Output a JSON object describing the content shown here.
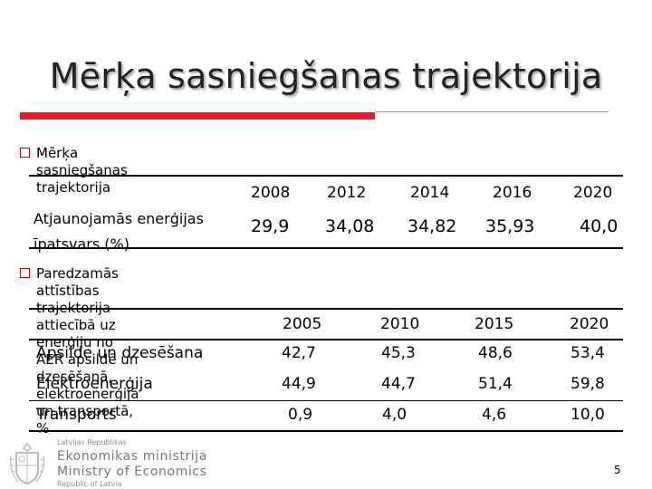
{
  "title": "Mērķa sasniegšanas trajektorija",
  "section1": {
    "heading": "Mērķa sasniegšanas trajektorija",
    "years": [
      "2008",
      "2012",
      "2014",
      "2016",
      "2020"
    ],
    "row_label_line1": "Atjaunojamās enerģijas",
    "row_label_line2": "īpatsvars (%)",
    "values": [
      "29,9",
      "34,08",
      "34,82",
      "35,93",
      "40,0"
    ]
  },
  "section2": {
    "heading_line1": "Paredzamās attīstības trajektorija attiecībā uz enerģiju no AER apsildē un",
    "heading_line2": "dzesēšanā, elektroenerģijā un transportā, %",
    "years": [
      "2005",
      "2010",
      "2015",
      "2020"
    ],
    "rows": [
      {
        "label": "Apsilde un dzesēšana",
        "values": [
          "42,7",
          "45,3",
          "48,6",
          "53,4"
        ]
      },
      {
        "label": "Elektroenerģija",
        "values": [
          "44,9",
          "44,7",
          "51,4",
          "59,8"
        ]
      },
      {
        "label": "Transports",
        "values": [
          "0,9",
          "4,0",
          "4,6",
          "10,0"
        ]
      }
    ]
  },
  "logo": {
    "line_top": "Latvijas Republikas",
    "line1": "Ekonomikas ministrija",
    "line2": "Ministry of Economics",
    "line_bottom": "Republic of Latvia"
  },
  "page_number": "5",
  "colors": {
    "accent": "#e0202a",
    "bullet": "#b00000"
  }
}
